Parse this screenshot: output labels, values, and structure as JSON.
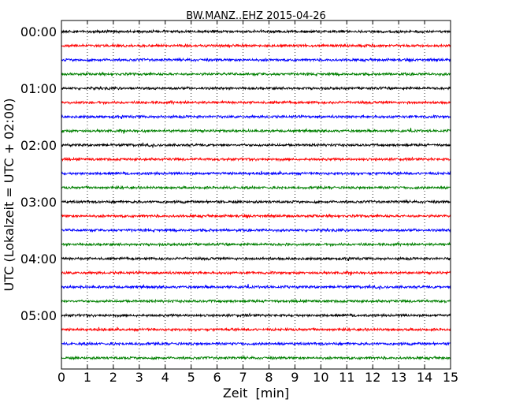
{
  "chart_data": {
    "type": "line",
    "title": "BW.MANZ..EHZ 2015-04-26",
    "xlabel": "Zeit  [min]",
    "ylabel": "UTC (Lokalzeit = UTC + 02:00)",
    "xlim": [
      0,
      15
    ],
    "xticks": [
      "0",
      "1",
      "2",
      "3",
      "4",
      "5",
      "6",
      "7",
      "8",
      "9",
      "10",
      "11",
      "12",
      "13",
      "14",
      "15"
    ],
    "yticks": [
      "00:00",
      "01:00",
      "02:00",
      "03:00",
      "04:00",
      "05:00"
    ],
    "ytick_rows": [
      0,
      4,
      8,
      12,
      16,
      20
    ],
    "grid": "vertical dotted",
    "row_count": 24,
    "row_interval_minutes": 15,
    "series_colors": [
      "#000000",
      "#ff0000",
      "#0000ff",
      "#008000"
    ]
  }
}
